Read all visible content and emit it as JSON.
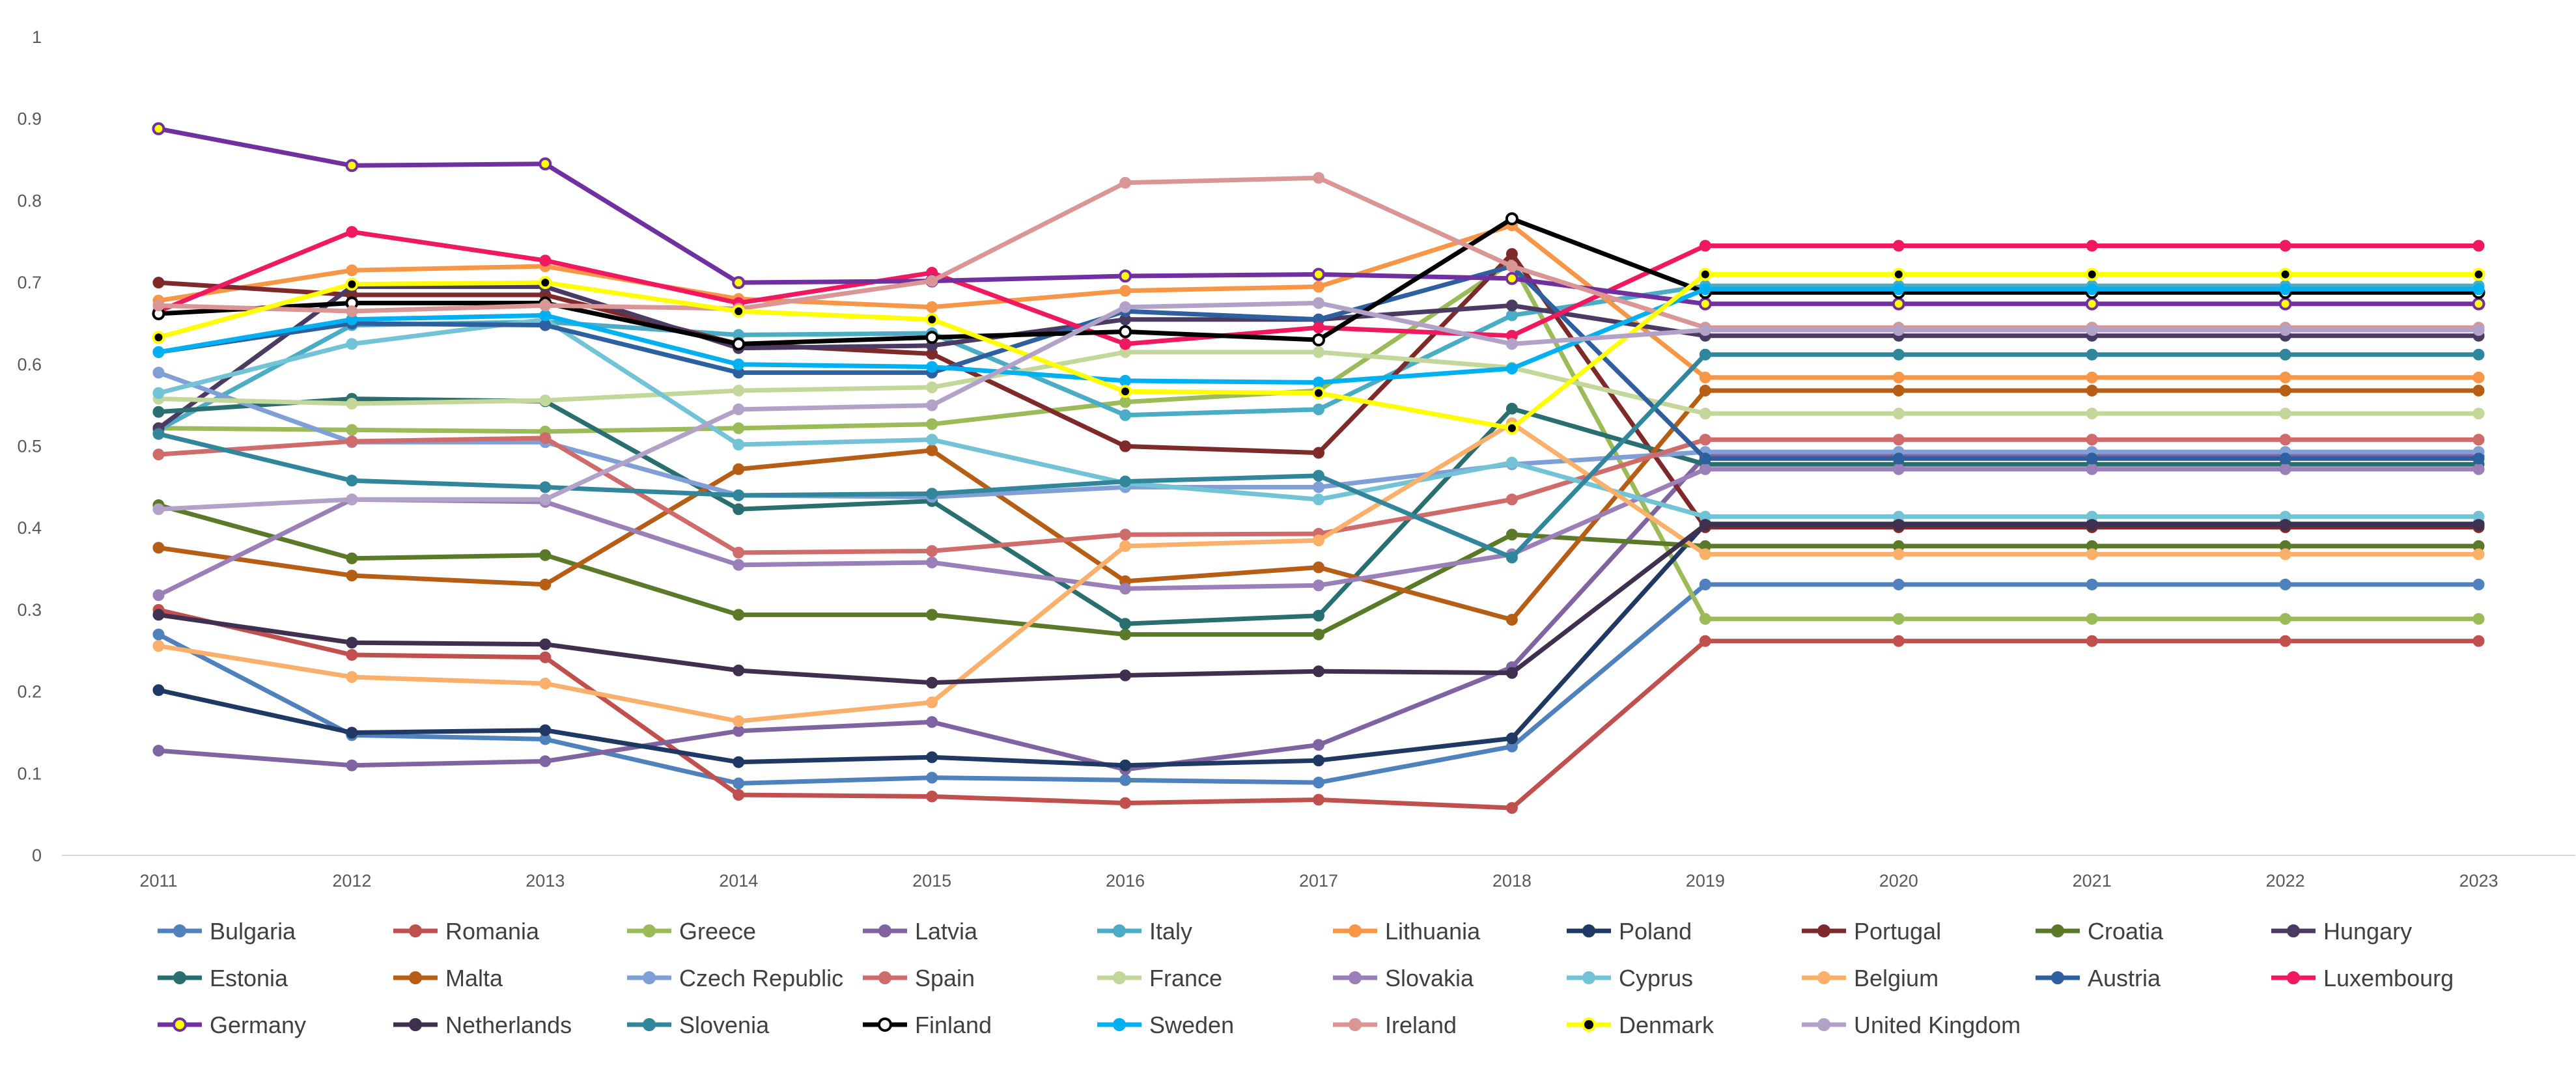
{
  "chart_data": {
    "type": "line",
    "title": "",
    "xlabel": "",
    "ylabel": "",
    "ylim": [
      0,
      1
    ],
    "yticks": [
      "0",
      "0.1",
      "0.2",
      "0.3",
      "0.4",
      "0.5",
      "0.6",
      "0.7",
      "0.8",
      "0.9",
      "1"
    ],
    "categories": [
      "2011",
      "2012",
      "2013",
      "2014",
      "2015",
      "2016",
      "2017",
      "2018",
      "2019",
      "2020",
      "2021",
      "2022",
      "2023"
    ],
    "grid": false,
    "legend": "bottom",
    "series": [
      {
        "name": "Bulgaria",
        "color": "#4f81bd",
        "values": [
          0.27,
          0.147,
          0.142,
          0.088,
          0.095,
          0.092,
          0.089,
          0.133,
          0.331,
          0.331,
          0.331,
          0.331,
          0.331
        ]
      },
      {
        "name": "Romania",
        "color": "#c0504d",
        "values": [
          0.3,
          0.245,
          0.242,
          0.074,
          0.072,
          0.064,
          0.068,
          0.058,
          0.262,
          0.262,
          0.262,
          0.262,
          0.262
        ]
      },
      {
        "name": "Greece",
        "color": "#9bbb59",
        "values": [
          0.522,
          0.52,
          0.518,
          0.522,
          0.527,
          0.554,
          0.568,
          0.725,
          0.289,
          0.289,
          0.289,
          0.289,
          0.289
        ]
      },
      {
        "name": "Latvia",
        "color": "#8064a2",
        "values": [
          0.128,
          0.11,
          0.115,
          0.152,
          0.163,
          0.105,
          0.135,
          0.23,
          0.488,
          0.488,
          0.488,
          0.488,
          0.488
        ]
      },
      {
        "name": "Italy",
        "color": "#4bacc6",
        "values": [
          0.52,
          0.648,
          0.652,
          0.636,
          0.638,
          0.538,
          0.545,
          0.66,
          0.696,
          0.696,
          0.696,
          0.696,
          0.696
        ]
      },
      {
        "name": "Lithuania",
        "color": "#f79646",
        "values": [
          0.678,
          0.715,
          0.72,
          0.68,
          0.67,
          0.69,
          0.695,
          0.77,
          0.584,
          0.584,
          0.584,
          0.584,
          0.584
        ]
      },
      {
        "name": "Poland",
        "color": "#1f3864",
        "values": [
          0.202,
          0.15,
          0.153,
          0.114,
          0.12,
          0.11,
          0.116,
          0.143,
          0.405,
          0.405,
          0.405,
          0.405,
          0.405
        ]
      },
      {
        "name": "Portugal",
        "color": "#7f2a2a",
        "values": [
          0.7,
          0.685,
          0.685,
          0.625,
          0.613,
          0.5,
          0.492,
          0.735,
          0.401,
          0.401,
          0.401,
          0.401,
          0.401
        ]
      },
      {
        "name": "Croatia",
        "color": "#5a7a2a",
        "values": [
          0.428,
          0.363,
          0.367,
          0.294,
          0.294,
          0.27,
          0.27,
          0.392,
          0.378,
          0.378,
          0.378,
          0.378,
          0.378
        ]
      },
      {
        "name": "Hungary",
        "color": "#4b3a62",
        "values": [
          0.522,
          0.695,
          0.695,
          0.62,
          0.623,
          0.655,
          0.655,
          0.672,
          0.635,
          0.635,
          0.635,
          0.635,
          0.635
        ]
      },
      {
        "name": "Estonia",
        "color": "#2a6f6f",
        "values": [
          0.542,
          0.558,
          0.555,
          0.423,
          0.433,
          0.283,
          0.293,
          0.546,
          0.478,
          0.478,
          0.478,
          0.478,
          0.478
        ]
      },
      {
        "name": "Malta",
        "color": "#b65e16",
        "values": [
          0.376,
          0.342,
          0.331,
          0.472,
          0.495,
          0.335,
          0.352,
          0.288,
          0.568,
          0.568,
          0.568,
          0.568,
          0.568
        ]
      },
      {
        "name": "Czech Republic",
        "color": "#7f9fd6",
        "values": [
          0.59,
          0.505,
          0.505,
          0.44,
          0.438,
          0.45,
          0.45,
          0.478,
          0.493,
          0.493,
          0.493,
          0.493,
          0.493
        ]
      },
      {
        "name": "Spain",
        "color": "#d06b6b",
        "values": [
          0.49,
          0.506,
          0.51,
          0.37,
          0.372,
          0.392,
          0.393,
          0.435,
          0.508,
          0.508,
          0.508,
          0.508,
          0.508
        ]
      },
      {
        "name": "France",
        "color": "#c4d79b",
        "values": [
          0.558,
          0.552,
          0.556,
          0.568,
          0.572,
          0.615,
          0.615,
          0.596,
          0.54,
          0.54,
          0.54,
          0.54,
          0.54
        ]
      },
      {
        "name": "Slovakia",
        "color": "#9a7fb8",
        "values": [
          0.318,
          0.435,
          0.432,
          0.355,
          0.358,
          0.326,
          0.33,
          0.368,
          0.472,
          0.472,
          0.472,
          0.472,
          0.472
        ]
      },
      {
        "name": "Cyprus",
        "color": "#73c3d6",
        "values": [
          0.565,
          0.625,
          0.655,
          0.502,
          0.508,
          0.455,
          0.435,
          0.48,
          0.414,
          0.414,
          0.414,
          0.414,
          0.414
        ]
      },
      {
        "name": "Belgium",
        "color": "#fab06a",
        "values": [
          0.256,
          0.218,
          0.21,
          0.164,
          0.187,
          0.378,
          0.385,
          0.528,
          0.368,
          0.368,
          0.368,
          0.368,
          0.368
        ]
      },
      {
        "name": "Austria",
        "color": "#2e5f9e",
        "values": [
          0.615,
          0.65,
          0.648,
          0.59,
          0.59,
          0.665,
          0.655,
          0.72,
          0.485,
          0.485,
          0.485,
          0.485,
          0.485
        ]
      },
      {
        "name": "Luxembourg",
        "color": "#f0185e",
        "values": [
          0.665,
          0.762,
          0.727,
          0.675,
          0.712,
          0.625,
          0.645,
          0.635,
          0.745,
          0.745,
          0.745,
          0.745,
          0.745
        ]
      },
      {
        "name": "Germany",
        "color": "#7030a0",
        "values": [
          0.888,
          0.843,
          0.845,
          0.7,
          0.702,
          0.708,
          0.71,
          0.705,
          0.674,
          0.674,
          0.674,
          0.674,
          0.674
        ]
      },
      {
        "name": "Netherlands",
        "color": "#403050",
        "values": [
          0.294,
          0.26,
          0.258,
          0.226,
          0.211,
          0.22,
          0.225,
          0.223,
          0.404,
          0.404,
          0.404,
          0.404,
          0.404
        ]
      },
      {
        "name": "Slovenia",
        "color": "#31869b",
        "values": [
          0.515,
          0.458,
          0.45,
          0.44,
          0.442,
          0.457,
          0.464,
          0.364,
          0.612,
          0.612,
          0.612,
          0.612,
          0.612
        ]
      },
      {
        "name": "Finland",
        "color": "#000000",
        "values": [
          0.662,
          0.675,
          0.675,
          0.625,
          0.633,
          0.64,
          0.63,
          0.778,
          0.688,
          0.688,
          0.688,
          0.688,
          0.688
        ]
      },
      {
        "name": "Sweden",
        "color": "#00b0f0",
        "values": [
          0.615,
          0.655,
          0.66,
          0.6,
          0.597,
          0.58,
          0.578,
          0.595,
          0.692,
          0.692,
          0.692,
          0.692,
          0.692
        ]
      },
      {
        "name": "Ireland",
        "color": "#da9694",
        "values": [
          0.672,
          0.665,
          0.672,
          0.668,
          0.702,
          0.822,
          0.828,
          0.72,
          0.645,
          0.645,
          0.645,
          0.645,
          0.645
        ]
      },
      {
        "name": "Denmark",
        "color": "#ffff00",
        "values": [
          0.633,
          0.698,
          0.7,
          0.665,
          0.655,
          0.567,
          0.565,
          0.522,
          0.71,
          0.71,
          0.71,
          0.71,
          0.71
        ]
      },
      {
        "name": "United Kingdom",
        "color": "#b3a2c7",
        "values": [
          0.423,
          0.435,
          0.435,
          0.545,
          0.55,
          0.67,
          0.675,
          0.625,
          0.642,
          0.642,
          0.642,
          0.642,
          0.642
        ]
      }
    ]
  }
}
